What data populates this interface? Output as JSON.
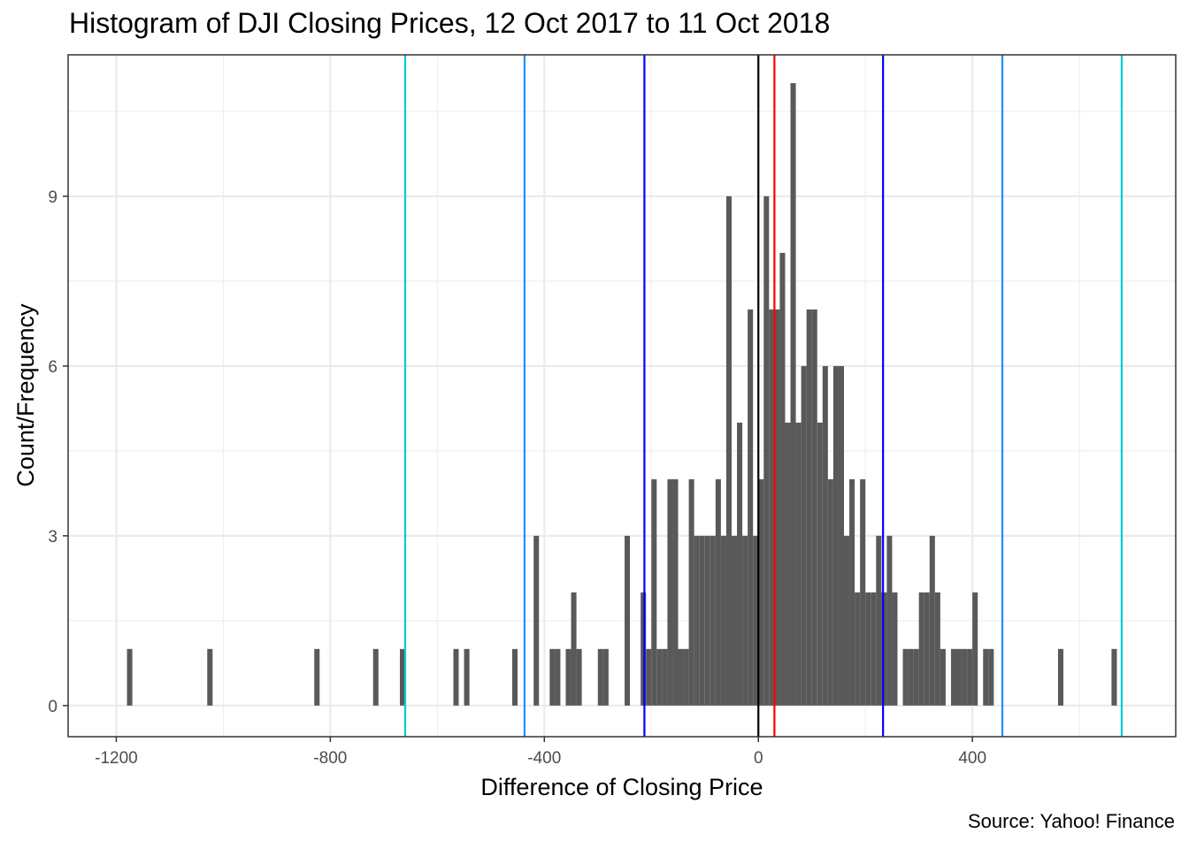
{
  "chart_data": {
    "type": "bar",
    "title": "Histogram of DJI Closing Prices, 12 Oct 2017 to 11 Oct 2018",
    "xlabel": "Difference of Closing Price",
    "ylabel": "Count/Frequency",
    "caption": "Source: Yahoo! Finance",
    "xlim": [
      -1290,
      780
    ],
    "ylim": [
      -0.55,
      11.5
    ],
    "x_ticks": [
      -1200,
      -800,
      -400,
      0,
      400
    ],
    "x_tick_labels": [
      "-1200",
      "-800",
      "-400",
      "0",
      "400"
    ],
    "y_ticks": [
      0,
      3,
      6,
      9
    ],
    "y_tick_labels": [
      "0",
      "3",
      "6",
      "9"
    ],
    "bin_width": 10,
    "bar_color": "#595959",
    "grid": true,
    "bins": [
      {
        "x": -1175,
        "count": 1
      },
      {
        "x": -1025,
        "count": 1
      },
      {
        "x": -825,
        "count": 1
      },
      {
        "x": -715,
        "count": 1
      },
      {
        "x": -665,
        "count": 1
      },
      {
        "x": -565,
        "count": 1
      },
      {
        "x": -545,
        "count": 1
      },
      {
        "x": -455,
        "count": 1
      },
      {
        "x": -415,
        "count": 3
      },
      {
        "x": -385,
        "count": 1
      },
      {
        "x": -375,
        "count": 1
      },
      {
        "x": -355,
        "count": 1
      },
      {
        "x": -345,
        "count": 2
      },
      {
        "x": -335,
        "count": 1
      },
      {
        "x": -295,
        "count": 1
      },
      {
        "x": -285,
        "count": 1
      },
      {
        "x": -245,
        "count": 3
      },
      {
        "x": -215,
        "count": 2
      },
      {
        "x": -205,
        "count": 1
      },
      {
        "x": -195,
        "count": 4
      },
      {
        "x": -185,
        "count": 1
      },
      {
        "x": -175,
        "count": 1
      },
      {
        "x": -165,
        "count": 4
      },
      {
        "x": -155,
        "count": 4
      },
      {
        "x": -145,
        "count": 1
      },
      {
        "x": -135,
        "count": 1
      },
      {
        "x": -125,
        "count": 4
      },
      {
        "x": -115,
        "count": 3
      },
      {
        "x": -105,
        "count": 3
      },
      {
        "x": -95,
        "count": 3
      },
      {
        "x": -85,
        "count": 3
      },
      {
        "x": -75,
        "count": 4
      },
      {
        "x": -65,
        "count": 3
      },
      {
        "x": -55,
        "count": 9
      },
      {
        "x": -45,
        "count": 3
      },
      {
        "x": -35,
        "count": 5
      },
      {
        "x": -25,
        "count": 3
      },
      {
        "x": -15,
        "count": 7
      },
      {
        "x": -5,
        "count": 3
      },
      {
        "x": 5,
        "count": 4
      },
      {
        "x": 15,
        "count": 9
      },
      {
        "x": 25,
        "count": 7
      },
      {
        "x": 35,
        "count": 7
      },
      {
        "x": 45,
        "count": 8
      },
      {
        "x": 55,
        "count": 5
      },
      {
        "x": 65,
        "count": 11
      },
      {
        "x": 75,
        "count": 5
      },
      {
        "x": 85,
        "count": 6
      },
      {
        "x": 95,
        "count": 7
      },
      {
        "x": 105,
        "count": 7
      },
      {
        "x": 115,
        "count": 5
      },
      {
        "x": 125,
        "count": 6
      },
      {
        "x": 135,
        "count": 4
      },
      {
        "x": 145,
        "count": 6
      },
      {
        "x": 155,
        "count": 6
      },
      {
        "x": 165,
        "count": 3
      },
      {
        "x": 175,
        "count": 4
      },
      {
        "x": 185,
        "count": 2
      },
      {
        "x": 195,
        "count": 4
      },
      {
        "x": 205,
        "count": 2
      },
      {
        "x": 215,
        "count": 2
      },
      {
        "x": 225,
        "count": 3
      },
      {
        "x": 235,
        "count": 2
      },
      {
        "x": 245,
        "count": 3
      },
      {
        "x": 255,
        "count": 2
      },
      {
        "x": 275,
        "count": 1
      },
      {
        "x": 285,
        "count": 1
      },
      {
        "x": 295,
        "count": 1
      },
      {
        "x": 305,
        "count": 2
      },
      {
        "x": 315,
        "count": 2
      },
      {
        "x": 325,
        "count": 3
      },
      {
        "x": 335,
        "count": 2
      },
      {
        "x": 345,
        "count": 1
      },
      {
        "x": 365,
        "count": 1
      },
      {
        "x": 375,
        "count": 1
      },
      {
        "x": 385,
        "count": 1
      },
      {
        "x": 395,
        "count": 1
      },
      {
        "x": 405,
        "count": 2
      },
      {
        "x": 425,
        "count": 1
      },
      {
        "x": 435,
        "count": 1
      },
      {
        "x": 565,
        "count": 1
      },
      {
        "x": 665,
        "count": 1
      }
    ],
    "vlines": [
      {
        "x": -660,
        "color": "#00ced1"
      },
      {
        "x": -437,
        "color": "#1e90ff"
      },
      {
        "x": -213,
        "color": "#0000ff"
      },
      {
        "x": 0,
        "color": "#000000"
      },
      {
        "x": 30,
        "color": "#ff0000"
      },
      {
        "x": 233,
        "color": "#0000ff"
      },
      {
        "x": 456,
        "color": "#1e90ff"
      },
      {
        "x": 679,
        "color": "#00ced1"
      }
    ]
  }
}
